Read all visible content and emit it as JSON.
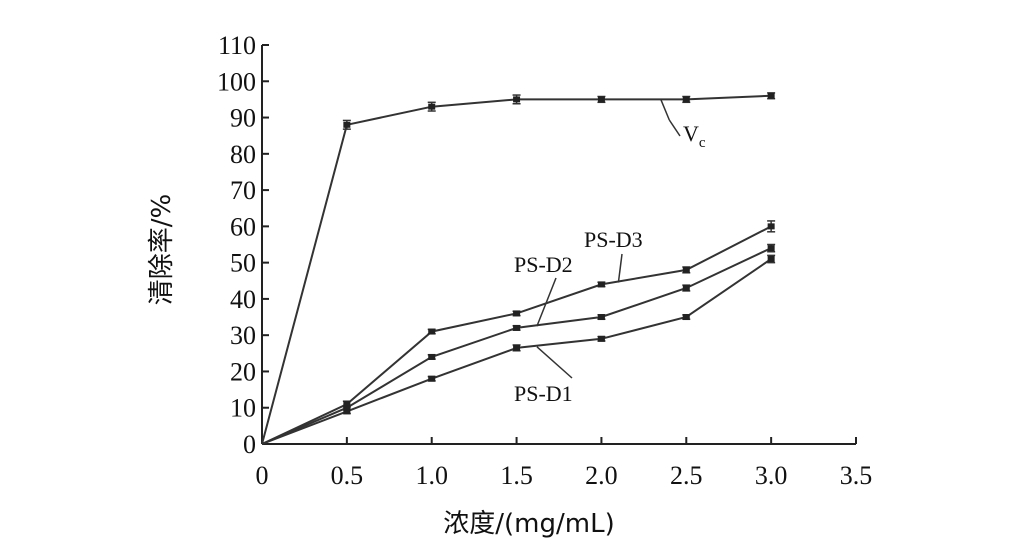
{
  "chart_data": {
    "type": "line",
    "title": "",
    "xlabel": "浓度/(mg/mL)",
    "ylabel": "清除率/%",
    "xlim": [
      0,
      3.5
    ],
    "ylim": [
      0,
      110
    ],
    "x_ticks": [
      "0",
      "0.5",
      "1.0",
      "1.5",
      "2.0",
      "2.5",
      "3.0",
      "3.5"
    ],
    "y_ticks": [
      "0",
      "10",
      "20",
      "30",
      "40",
      "50",
      "60",
      "70",
      "80",
      "90",
      "100",
      "110"
    ],
    "grid": false,
    "legend": "inline labels with leader lines",
    "x": [
      0,
      0.5,
      1.0,
      1.5,
      2.0,
      2.5,
      3.0
    ],
    "series": [
      {
        "name": "Vc",
        "name_main": "V",
        "name_sub": "c",
        "values": [
          0,
          88,
          93,
          95,
          95,
          95,
          96
        ],
        "errors": [
          0,
          1.2,
          1.2,
          1.2,
          0.8,
          0.8,
          0.8
        ]
      },
      {
        "name": "PS-D3",
        "values": [
          0,
          11,
          31,
          36,
          44,
          48,
          60
        ],
        "errors": [
          0,
          0.8,
          0.6,
          0.6,
          0.6,
          0.8,
          1.5
        ]
      },
      {
        "name": "PS-D2",
        "values": [
          0,
          10,
          24,
          32,
          35,
          43,
          54
        ],
        "errors": [
          0,
          0.6,
          0.6,
          0.6,
          0.6,
          0.8,
          1.0
        ]
      },
      {
        "name": "PS-D1",
        "values": [
          0,
          9,
          18,
          26.5,
          29,
          35,
          51
        ],
        "errors": [
          0,
          0.6,
          0.6,
          0.8,
          0.6,
          0.6,
          1.0
        ]
      }
    ]
  }
}
